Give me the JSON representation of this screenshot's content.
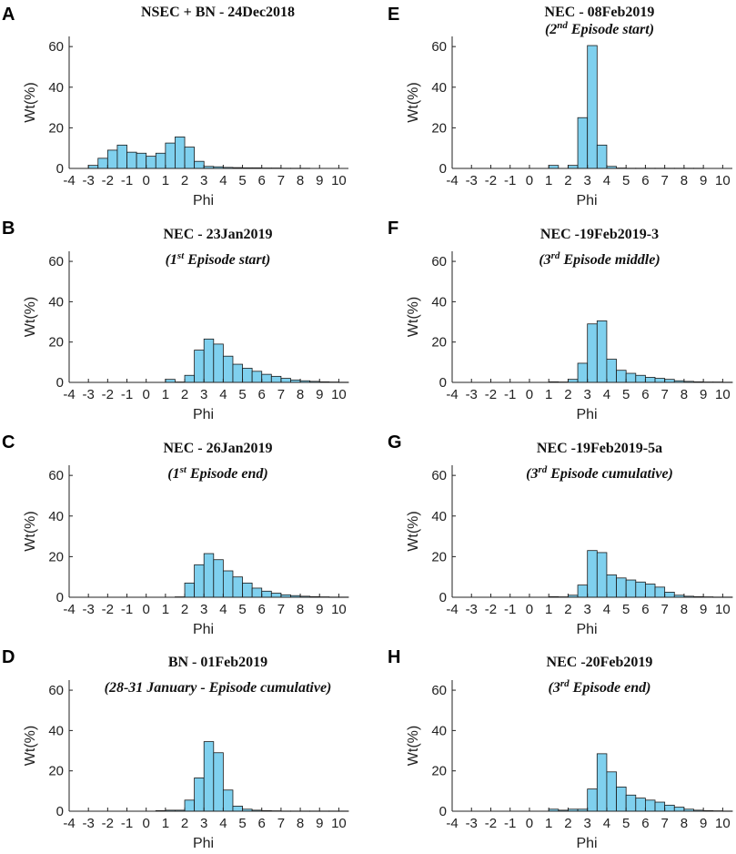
{
  "colors": {
    "bar_fill": "#7fd0ee",
    "bar_edge": "#1a1a1a",
    "axis": "#222222"
  },
  "chart_data": [
    {
      "panel": "A",
      "type": "bar",
      "title": "NSEC + BN - 24Dec2018",
      "subtitle": null,
      "xlabel": "Phi",
      "ylabel": "Wt(%)",
      "xlim": [
        -4,
        10.5
      ],
      "ylim": [
        0,
        65
      ],
      "xticks": [
        -4,
        -3,
        -2,
        -1,
        0,
        1,
        2,
        3,
        4,
        5,
        6,
        7,
        8,
        9,
        10
      ],
      "yticks": [
        0,
        20,
        40,
        60
      ],
      "bin_width": 0.5,
      "bin_start": [
        -3.5,
        -3,
        -2.5,
        -2,
        -1.5,
        -1,
        -0.5,
        0,
        0.5,
        1,
        1.5,
        2,
        2.5,
        3,
        3.5,
        4,
        4.5,
        5,
        5.5,
        6,
        6.5,
        7,
        7.5,
        8,
        8.5,
        9,
        9.5,
        10
      ],
      "values": [
        0,
        1.5,
        5,
        9,
        11.5,
        8,
        7.5,
        6,
        7.5,
        12.5,
        15.5,
        10.5,
        3.5,
        1,
        0.8,
        0.5,
        0.4,
        0.3,
        0.3,
        0.2,
        0.2,
        0.1,
        0.1,
        0.1,
        0,
        0,
        0,
        0
      ]
    },
    {
      "panel": "B",
      "type": "bar",
      "title": "NEC - 23Jan2019",
      "subtitle": {
        "pre": "(1",
        "sup": "st",
        "post": " Episode start)"
      },
      "xlabel": "Phi",
      "ylabel": "Wt(%)",
      "xlim": [
        -4,
        10.5
      ],
      "ylim": [
        0,
        65
      ],
      "xticks": [
        -4,
        -3,
        -2,
        -1,
        0,
        1,
        2,
        3,
        4,
        5,
        6,
        7,
        8,
        9,
        10
      ],
      "yticks": [
        0,
        20,
        40,
        60
      ],
      "bin_width": 0.5,
      "bin_start": [
        0.5,
        1,
        1.5,
        2,
        2.5,
        3,
        3.5,
        4,
        4.5,
        5,
        5.5,
        6,
        6.5,
        7,
        7.5,
        8,
        8.5,
        9,
        9.5,
        10
      ],
      "values": [
        0,
        1.5,
        0.2,
        3.5,
        16,
        21.5,
        19,
        13,
        9,
        7,
        5.5,
        4,
        3,
        2,
        1.2,
        0.8,
        0.5,
        0.3,
        0.2,
        0.1
      ]
    },
    {
      "panel": "C",
      "type": "bar",
      "title": "NEC - 26Jan2019",
      "subtitle": {
        "pre": "(1",
        "sup": "st",
        "post": " Episode end)"
      },
      "xlabel": "Phi",
      "ylabel": "Wt(%)",
      "xlim": [
        -4,
        10.5
      ],
      "ylim": [
        0,
        65
      ],
      "xticks": [
        -4,
        -3,
        -2,
        -1,
        0,
        1,
        2,
        3,
        4,
        5,
        6,
        7,
        8,
        9,
        10
      ],
      "yticks": [
        0,
        20,
        40,
        60
      ],
      "bin_width": 0.5,
      "bin_start": [
        1.5,
        2,
        2.5,
        3,
        3.5,
        4,
        4.5,
        5,
        5.5,
        6,
        6.5,
        7,
        7.5,
        8,
        8.5,
        9,
        9.5,
        10
      ],
      "values": [
        0.2,
        7,
        16,
        21.5,
        18.5,
        13,
        10,
        7,
        4.5,
        3,
        2,
        1.2,
        0.8,
        0.5,
        0.3,
        0.2,
        0.1,
        0.1
      ]
    },
    {
      "panel": "D",
      "type": "bar",
      "title": "BN - 01Feb2019",
      "subtitle": {
        "pre": "(28-31 January - Episode cumulative)",
        "sup": "",
        "post": ""
      },
      "xlabel": "Phi",
      "ylabel": "Wt(%)",
      "xlim": [
        -4,
        10.5
      ],
      "ylim": [
        0,
        65
      ],
      "xticks": [
        -4,
        -3,
        -2,
        -1,
        0,
        1,
        2,
        3,
        4,
        5,
        6,
        7,
        8,
        9,
        10
      ],
      "yticks": [
        0,
        20,
        40,
        60
      ],
      "bin_width": 0.5,
      "bin_start": [
        0.5,
        1,
        1.5,
        2,
        2.5,
        3,
        3.5,
        4,
        4.5,
        5,
        5.5,
        6,
        6.5,
        7,
        7.5,
        8,
        8.5,
        9,
        9.5,
        10
      ],
      "values": [
        0.3,
        0.5,
        0.5,
        5.5,
        16.5,
        34.5,
        29,
        10.5,
        2.5,
        1,
        0.5,
        0.3,
        0.2,
        0.1,
        0.1,
        0.1,
        0.1,
        0.1,
        0.1,
        0.1
      ]
    },
    {
      "panel": "E",
      "type": "bar",
      "title": "NEC - 08Feb2019",
      "subtitle": {
        "pre": "(2",
        "sup": "nd",
        "post": " Episode start)"
      },
      "xlabel": "Phi",
      "ylabel": "Wt(%)",
      "xlim": [
        -4,
        10.5
      ],
      "ylim": [
        0,
        65
      ],
      "xticks": [
        -4,
        -3,
        -2,
        -1,
        0,
        1,
        2,
        3,
        4,
        5,
        6,
        7,
        8,
        9,
        10
      ],
      "yticks": [
        0,
        20,
        40,
        60
      ],
      "bin_width": 0.5,
      "bin_start": [
        0.5,
        1,
        1.5,
        2,
        2.5,
        3,
        3.5,
        4,
        4.5,
        5,
        5.5,
        6,
        6.5,
        7,
        7.5,
        8,
        8.5,
        9,
        9.5,
        10
      ],
      "values": [
        0,
        1.5,
        0,
        1.5,
        25,
        60.5,
        11.5,
        1,
        0.2,
        0.1,
        0.1,
        0.1,
        0.1,
        0.1,
        0.1,
        0.1,
        0.1,
        0,
        0,
        0
      ]
    },
    {
      "panel": "F",
      "type": "bar",
      "title": "NEC -19Feb2019-3",
      "subtitle": {
        "pre": "(3",
        "sup": "rd",
        "post": " Episode middle)"
      },
      "xlabel": "Phi",
      "ylabel": "Wt(%)",
      "xlim": [
        -4,
        10.5
      ],
      "ylim": [
        0,
        65
      ],
      "xticks": [
        -4,
        -3,
        -2,
        -1,
        0,
        1,
        2,
        3,
        4,
        5,
        6,
        7,
        8,
        9,
        10
      ],
      "yticks": [
        0,
        20,
        40,
        60
      ],
      "bin_width": 0.5,
      "bin_start": [
        0.5,
        1,
        1.5,
        2,
        2.5,
        3,
        3.5,
        4,
        4.5,
        5,
        5.5,
        6,
        6.5,
        7,
        7.5,
        8,
        8.5,
        9,
        9.5,
        10
      ],
      "values": [
        0,
        0.3,
        0.2,
        1.5,
        9.5,
        29,
        30.5,
        11.5,
        6,
        4.5,
        3.5,
        2.5,
        2,
        1.5,
        0.8,
        0.5,
        0.3,
        0.2,
        0.2,
        0.1
      ]
    },
    {
      "panel": "G",
      "type": "bar",
      "title": "NEC -19Feb2019-5a",
      "subtitle": {
        "pre": "(3",
        "sup": "rd",
        "post": " Episode cumulative)"
      },
      "xlabel": "Phi",
      "ylabel": "Wt(%)",
      "xlim": [
        -4,
        10.5
      ],
      "ylim": [
        0,
        65
      ],
      "xticks": [
        -4,
        -3,
        -2,
        -1,
        0,
        1,
        2,
        3,
        4,
        5,
        6,
        7,
        8,
        9,
        10
      ],
      "yticks": [
        0,
        20,
        40,
        60
      ],
      "bin_width": 0.5,
      "bin_start": [
        0.5,
        1,
        1.5,
        2,
        2.5,
        3,
        3.5,
        4,
        4.5,
        5,
        5.5,
        6,
        6.5,
        7,
        7.5,
        8,
        8.5,
        9,
        9.5,
        10
      ],
      "values": [
        0,
        0.3,
        0.2,
        1,
        6,
        23,
        22,
        11,
        9.5,
        8.5,
        7.5,
        6.5,
        5,
        2.5,
        1,
        0.5,
        0.3,
        0.2,
        0.1,
        0.1
      ]
    },
    {
      "panel": "H",
      "type": "bar",
      "title": "NEC -20Feb2019",
      "subtitle": {
        "pre": "(3",
        "sup": "rd",
        "post": " Episode end)"
      },
      "xlabel": "Phi",
      "ylabel": "Wt(%)",
      "xlim": [
        -4,
        10.5
      ],
      "ylim": [
        0,
        65
      ],
      "xticks": [
        -4,
        -3,
        -2,
        -1,
        0,
        1,
        2,
        3,
        4,
        5,
        6,
        7,
        8,
        9,
        10
      ],
      "yticks": [
        0,
        20,
        40,
        60
      ],
      "bin_width": 0.5,
      "bin_start": [
        0.5,
        1,
        1.5,
        2,
        2.5,
        3,
        3.5,
        4,
        4.5,
        5,
        5.5,
        6,
        6.5,
        7,
        7.5,
        8,
        8.5,
        9,
        9.5,
        10
      ],
      "values": [
        0,
        1,
        0.5,
        1,
        1,
        11,
        28.5,
        19.5,
        12,
        8,
        6.5,
        5.5,
        4.5,
        3,
        2,
        1,
        0.5,
        0.3,
        0.2,
        0.1
      ]
    }
  ]
}
